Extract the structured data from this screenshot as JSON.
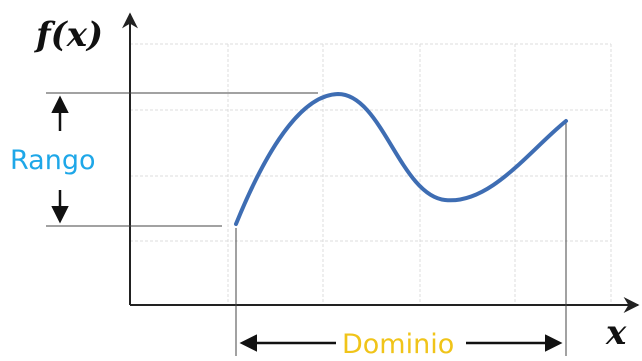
{
  "labels": {
    "y_axis": "f(x)",
    "x_axis": "x",
    "range": "Rango",
    "domain": "Dominio"
  },
  "colors": {
    "curve": "#3e6db3",
    "range_label": "#1ea7e8",
    "domain_label": "#f0c419",
    "axes": "#222222",
    "grid": "#dcdcdc"
  },
  "icons": {
    "range_arrow": "double-headed-vertical-arrow",
    "domain_arrow": "double-headed-horizontal-arrow",
    "axis_arrows": "arrowhead"
  }
}
